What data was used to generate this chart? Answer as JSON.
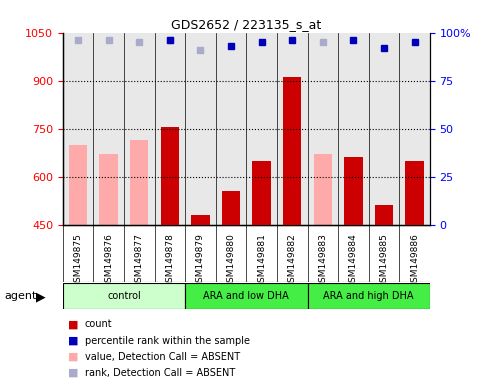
{
  "title": "GDS2652 / 223135_s_at",
  "samples": [
    "GSM149875",
    "GSM149876",
    "GSM149877",
    "GSM149878",
    "GSM149879",
    "GSM149880",
    "GSM149881",
    "GSM149882",
    "GSM149883",
    "GSM149884",
    "GSM149885",
    "GSM149886"
  ],
  "count_values": [
    null,
    null,
    null,
    755,
    480,
    555,
    650,
    910,
    null,
    660,
    510,
    650
  ],
  "absent_values": [
    700,
    670,
    715,
    null,
    null,
    null,
    null,
    null,
    670,
    null,
    null,
    null
  ],
  "percentile_rank": [
    null,
    null,
    null,
    96,
    null,
    93,
    95,
    96,
    null,
    96,
    92,
    95
  ],
  "absent_rank_present": [
    96,
    96,
    95,
    96,
    91,
    null,
    null,
    null,
    95,
    null,
    null,
    null
  ],
  "ylim_left": [
    450,
    1050
  ],
  "ylim_right": [
    0,
    100
  ],
  "yticks_left": [
    450,
    600,
    750,
    900,
    1050
  ],
  "yticks_right": [
    0,
    25,
    50,
    75,
    100
  ],
  "bar_color_present": "#cc0000",
  "bar_color_absent": "#ffaaaa",
  "dot_color_present": "#0000bb",
  "dot_color_absent_rank": "#aaaacc",
  "legend_items": [
    {
      "label": "count",
      "color": "#cc0000"
    },
    {
      "label": "percentile rank within the sample",
      "color": "#0000bb"
    },
    {
      "label": "value, Detection Call = ABSENT",
      "color": "#ffaaaa"
    },
    {
      "label": "rank, Detection Call = ABSENT",
      "color": "#aaaacc"
    }
  ],
  "agent_label": "agent",
  "group_configs": [
    {
      "label": "control",
      "start": 0,
      "end": 3,
      "color": "#ccffcc"
    },
    {
      "label": "ARA and low DHA",
      "start": 4,
      "end": 7,
      "color": "#44ee44"
    },
    {
      "label": "ARA and high DHA",
      "start": 8,
      "end": 11,
      "color": "#44ee44"
    }
  ]
}
